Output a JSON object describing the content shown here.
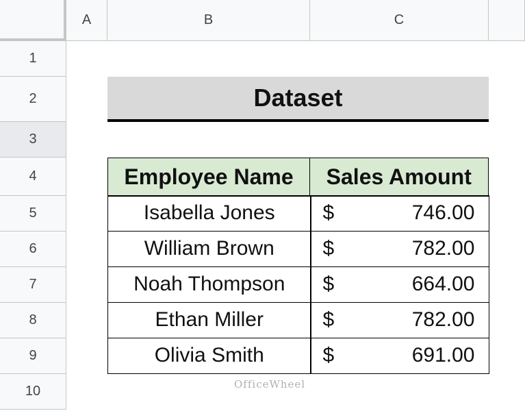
{
  "column_headers": [
    "A",
    "B",
    "C"
  ],
  "row_headers": [
    "1",
    "2",
    "3",
    "4",
    "5",
    "6",
    "7",
    "8",
    "9",
    "10"
  ],
  "title": "Dataset",
  "table": {
    "header": [
      "Employee Name",
      "Sales Amount"
    ],
    "rows": [
      [
        "Isabella Jones",
        "$",
        "746.00"
      ],
      [
        "William Brown",
        "$",
        "782.00"
      ],
      [
        "Noah Thompson",
        "$",
        "664.00"
      ],
      [
        "Ethan Miller",
        "$",
        "782.00"
      ],
      [
        "Olivia Smith",
        "$",
        "691.00"
      ]
    ]
  },
  "watermark": "OfficeWheel"
}
